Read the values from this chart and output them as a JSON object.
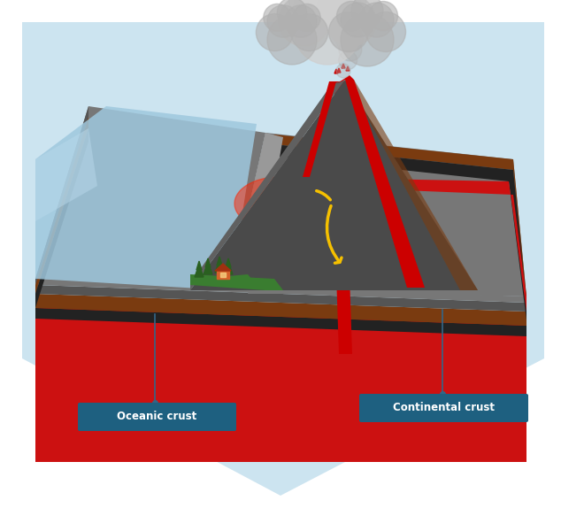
{
  "bg_color": "#cce4f0",
  "label_oceanic": "Oceanic crust",
  "label_continental": "Continental crust",
  "label_color_bg": "#1e6080",
  "label_text_color": "#ffffff",
  "lava_color": "#cc0000",
  "arrow_color": "#f5c000",
  "vol_dark": "#4a4a4a",
  "vol_mid": "#606060",
  "brown1": "#7a3b10",
  "brown2": "#5c2a08",
  "dark1": "#222222",
  "dark2": "#333333",
  "gray1": "#555555",
  "gray2": "#777777",
  "gray3": "#999999",
  "red_mantle": "#cc1111",
  "red_mantle2": "#aa0000",
  "cloud_light": "#d0d0d0",
  "cloud_dark": "#b0b0b0",
  "ocean_blue": "#9fc8de",
  "ocean_blue2": "#b8d8ea",
  "green1": "#3a7d30",
  "green2": "#2a6020"
}
